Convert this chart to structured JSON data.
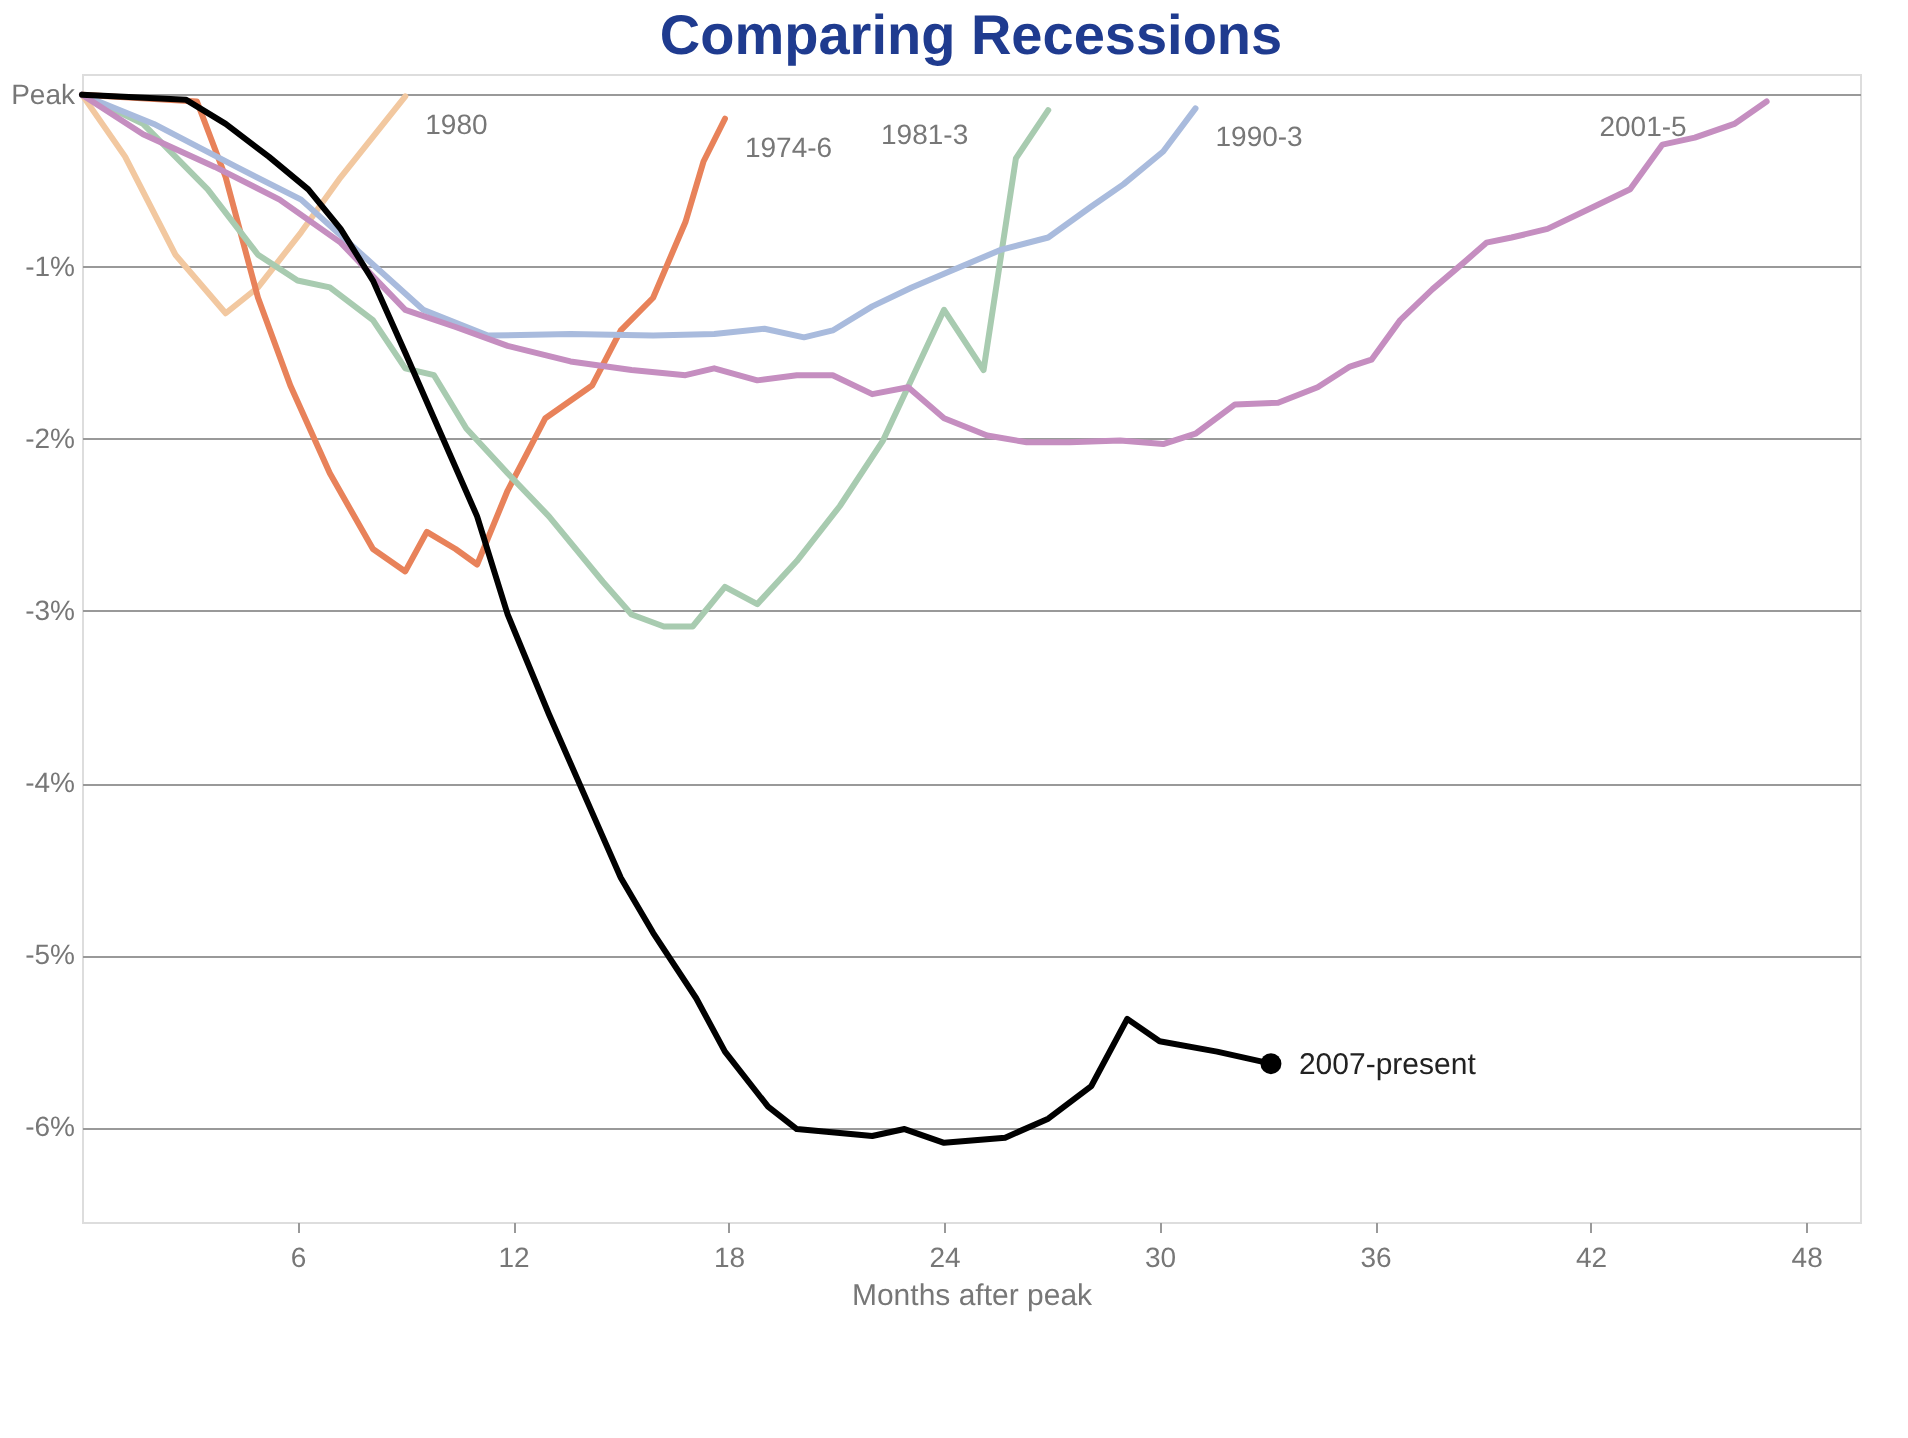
{
  "chart_data": {
    "type": "line",
    "title": "Comparing Recessions",
    "xlabel": "Months after peak",
    "xlim": [
      0,
      49.5
    ],
    "xticks": [
      6,
      12,
      18,
      24,
      30,
      36,
      42,
      48
    ],
    "ylim": [
      -6.55,
      0.12
    ],
    "yticks": [
      {
        "value": 0,
        "label": "Peak"
      },
      {
        "value": -1,
        "label": "-1%"
      },
      {
        "value": -2,
        "label": "-2%"
      },
      {
        "value": -3,
        "label": "-3%"
      },
      {
        "value": -4,
        "label": "-4%"
      },
      {
        "value": -5,
        "label": "-5%"
      },
      {
        "value": -6,
        "label": "-6%"
      }
    ],
    "grid": "y",
    "line_style": "solid",
    "series": [
      {
        "name": "1980",
        "color": "#f2c8a0",
        "x": [
          0,
          1.2,
          2.6,
          4.0,
          4.9,
          6.1,
          7.2,
          9.0
        ],
        "values": [
          0,
          -0.36,
          -0.93,
          -1.27,
          -1.12,
          -0.8,
          -0.48,
          -0.01
        ]
      },
      {
        "name": "1974-6",
        "color": "#e8825a",
        "x": [
          0,
          3.2,
          4.0,
          4.9,
          5.8,
          6.9,
          8.1,
          9.0,
          9.6,
          10.4,
          11.0,
          11.85,
          12.9,
          14.2,
          15.0,
          15.9,
          16.8,
          17.3,
          17.9
        ],
        "values": [
          0,
          -0.04,
          -0.48,
          -1.18,
          -1.69,
          -2.2,
          -2.64,
          -2.77,
          -2.54,
          -2.64,
          -2.73,
          -2.3,
          -1.88,
          -1.69,
          -1.37,
          -1.18,
          -0.74,
          -0.39,
          -0.14
        ]
      },
      {
        "name": "1981-3",
        "color": "#a8cbb0",
        "x": [
          0,
          1.7,
          3.5,
          4.9,
          6.0,
          6.9,
          8.1,
          9.0,
          9.8,
          10.7,
          11.85,
          13.0,
          14.5,
          15.3,
          16.2,
          17.0,
          17.9,
          18.8,
          19.9,
          21.1,
          22.3,
          24.0,
          25.1,
          26.0,
          26.9
        ],
        "values": [
          0,
          -0.17,
          -0.55,
          -0.93,
          -1.08,
          -1.12,
          -1.31,
          -1.59,
          -1.63,
          -1.94,
          -2.2,
          -2.45,
          -2.83,
          -3.02,
          -3.09,
          -3.09,
          -2.86,
          -2.96,
          -2.71,
          -2.39,
          -2.01,
          -1.25,
          -1.6,
          -0.37,
          -0.09
        ]
      },
      {
        "name": "1990-3",
        "color": "#a9bbdd",
        "x": [
          0,
          2.0,
          4.3,
          6.1,
          7.8,
          9.5,
          11.3,
          13.6,
          15.9,
          17.6,
          19.0,
          20.1,
          20.9,
          22.0,
          23.1,
          24.0,
          25.6,
          26.9,
          28.1,
          29.0,
          30.1,
          31.0
        ],
        "values": [
          0,
          -0.17,
          -0.42,
          -0.61,
          -0.93,
          -1.25,
          -1.4,
          -1.39,
          -1.4,
          -1.39,
          -1.36,
          -1.41,
          -1.37,
          -1.23,
          -1.12,
          -1.04,
          -0.9,
          -0.83,
          -0.65,
          -0.52,
          -0.33,
          -0.08
        ]
      },
      {
        "name": "2001-5",
        "color": "#c58ec0",
        "x": [
          0,
          1.7,
          3.7,
          5.5,
          7.2,
          9.0,
          10.4,
          11.85,
          13.6,
          15.3,
          16.8,
          17.6,
          18.8,
          19.9,
          20.9,
          22.0,
          23.0,
          24.0,
          25.2,
          26.3,
          27.5,
          28.9,
          30.1,
          31.0,
          32.1,
          33.3,
          34.4,
          35.3,
          35.9,
          36.7,
          37.6,
          38.5,
          39.1,
          39.8,
          40.8,
          41.9,
          43.1,
          44.0,
          44.9,
          46.0,
          46.9
        ],
        "values": [
          0,
          -0.23,
          -0.42,
          -0.61,
          -0.86,
          -1.25,
          -1.35,
          -1.46,
          -1.55,
          -1.6,
          -1.63,
          -1.59,
          -1.66,
          -1.63,
          -1.63,
          -1.74,
          -1.7,
          -1.88,
          -1.98,
          -2.02,
          -2.02,
          -2.01,
          -2.03,
          -1.97,
          -1.8,
          -1.79,
          -1.7,
          -1.58,
          -1.54,
          -1.31,
          -1.13,
          -0.97,
          -0.86,
          -0.83,
          -0.78,
          -0.67,
          -0.55,
          -0.29,
          -0.25,
          -0.17,
          -0.04
        ]
      },
      {
        "name": "2007-present",
        "color": "#000000",
        "x": [
          0,
          2.9,
          4.0,
          5.2,
          6.3,
          7.2,
          8.1,
          9.0,
          9.8,
          11.0,
          11.85,
          13.0,
          14.2,
          15.0,
          15.9,
          17.1,
          17.9,
          19.1,
          19.9,
          22.0,
          22.9,
          24.0,
          25.7,
          26.9,
          28.1,
          29.1,
          30.0,
          31.6,
          33.1
        ],
        "values": [
          0,
          -0.03,
          -0.17,
          -0.36,
          -0.55,
          -0.78,
          -1.08,
          -1.5,
          -1.88,
          -2.45,
          -3.02,
          -3.6,
          -4.17,
          -4.55,
          -4.87,
          -5.25,
          -5.56,
          -5.88,
          -6.01,
          -6.05,
          -6.01,
          -6.09,
          -6.06,
          -5.95,
          -5.76,
          -5.37,
          -5.5,
          -5.56,
          -5.63
        ]
      }
    ]
  }
}
